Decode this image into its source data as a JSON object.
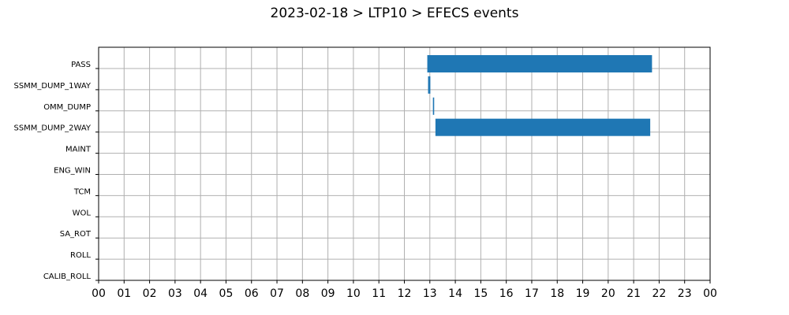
{
  "chart_data": {
    "type": "gantt",
    "title": "2023-02-18 > LTP10 > EFECS events",
    "xlabel": "",
    "ylabel": "",
    "x_range_hours": [
      0,
      24
    ],
    "x_tick_labels": [
      "00",
      "01",
      "02",
      "03",
      "04",
      "05",
      "06",
      "07",
      "08",
      "09",
      "10",
      "11",
      "12",
      "13",
      "14",
      "15",
      "16",
      "17",
      "18",
      "19",
      "20",
      "21",
      "22",
      "23",
      "00"
    ],
    "categories": [
      "PASS",
      "SSMM_DUMP_1WAY",
      "OMM_DUMP",
      "SSMM_DUMP_2WAY",
      "MAINT",
      "ENG_WIN",
      "TCM",
      "WOL",
      "SA_ROT",
      "ROLL",
      "CALIB_ROLL"
    ],
    "events": [
      {
        "category": "PASS",
        "start_hour": 12.9,
        "end_hour": 21.72
      },
      {
        "category": "SSMM_DUMP_1WAY",
        "start_hour": 12.93,
        "end_hour": 13.02
      },
      {
        "category": "OMM_DUMP",
        "start_hour": 13.12,
        "end_hour": 13.17
      },
      {
        "category": "SSMM_DUMP_2WAY",
        "start_hour": 13.22,
        "end_hour": 21.65
      }
    ],
    "bar_color": "#1f77b4",
    "grid": true
  }
}
